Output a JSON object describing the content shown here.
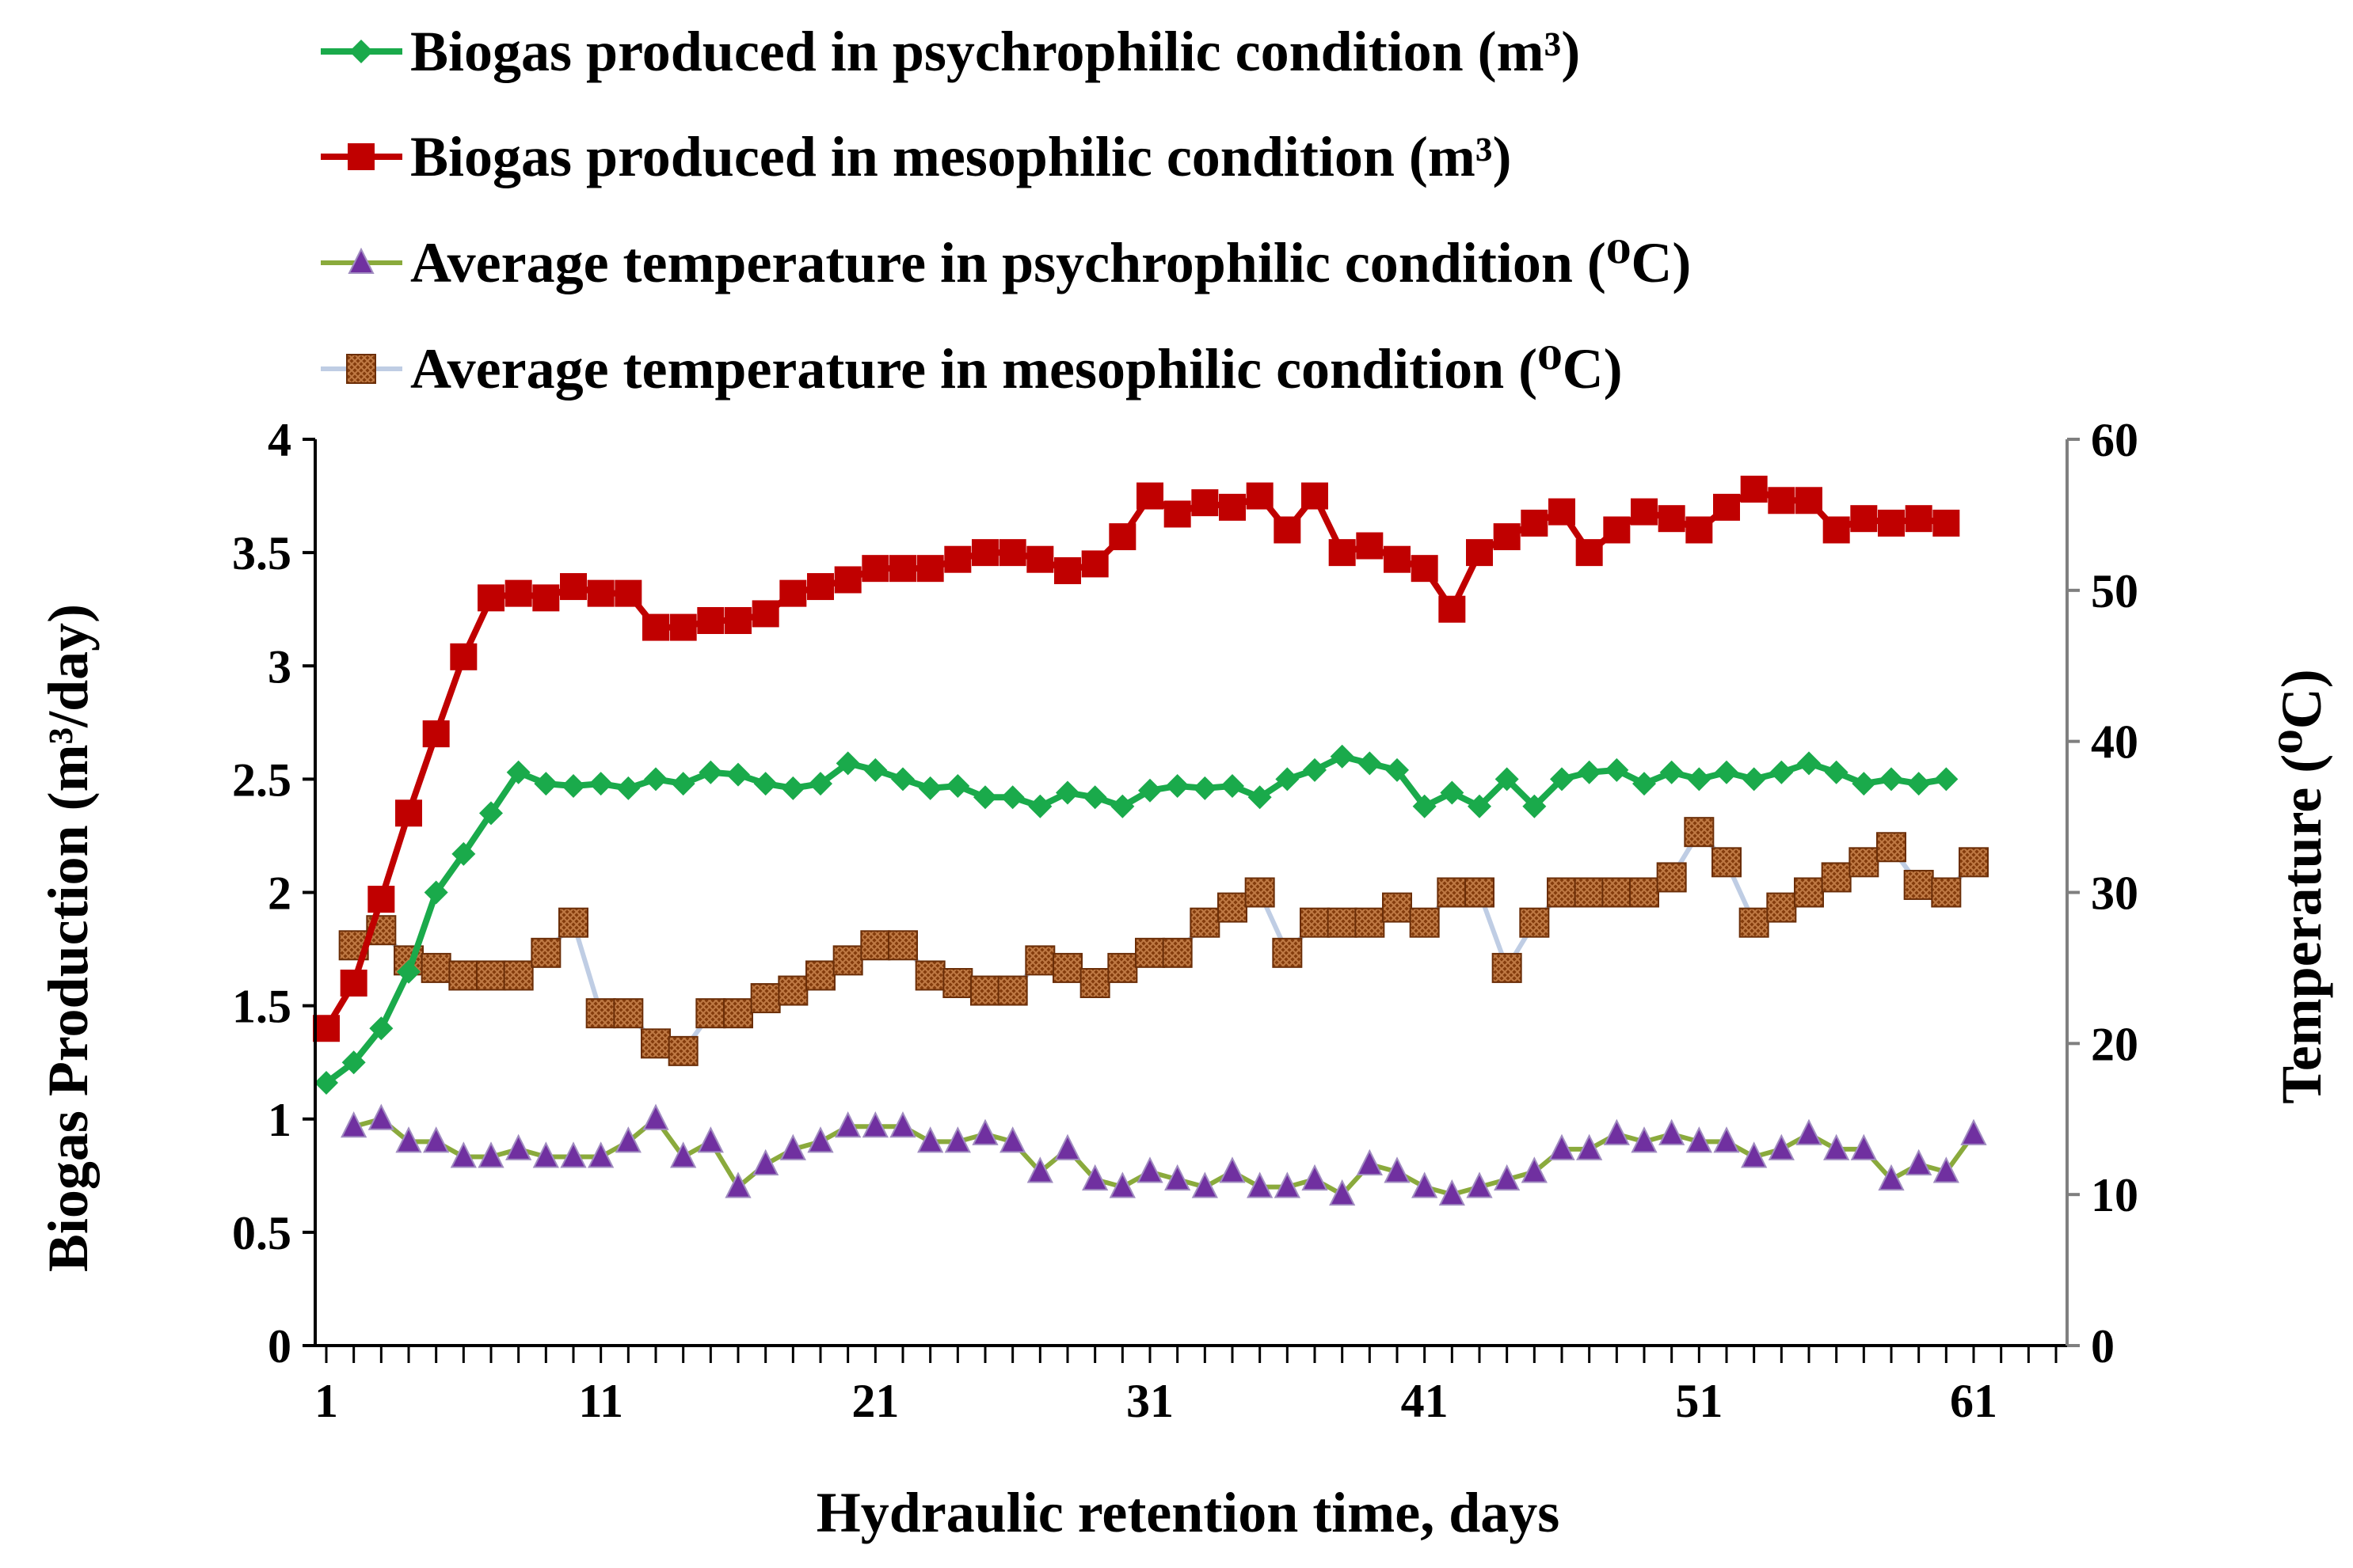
{
  "chart_data": {
    "type": "line",
    "xlabel": "Hydraulic retention time, days",
    "ylabel": "Biogas Production (m³/day)",
    "y2label": "Temperature (⁰C)",
    "xlim": [
      1,
      64
    ],
    "ylim": [
      0,
      4
    ],
    "y2lim": [
      0,
      60
    ],
    "x_ticks": [
      "1",
      "11",
      "21",
      "31",
      "41",
      "51",
      "61"
    ],
    "y_ticks": [
      "0",
      "0.5",
      "1",
      "1.5",
      "2",
      "2.5",
      "3",
      "3.5",
      "4"
    ],
    "y2_ticks": [
      "0",
      "10",
      "20",
      "30",
      "40",
      "50",
      "60"
    ],
    "legend_position": "top",
    "series": [
      {
        "name": "Biogas produced in psychrophilic condition (m³)",
        "axis": "left",
        "color": "#1aaa4b",
        "line_color": "#1aaa4b",
        "marker": "diamond",
        "x": [
          1,
          2,
          3,
          4,
          5,
          6,
          7,
          8,
          9,
          10,
          11,
          12,
          13,
          14,
          15,
          16,
          17,
          18,
          19,
          20,
          21,
          22,
          23,
          24,
          25,
          26,
          27,
          28,
          29,
          30,
          31,
          32,
          33,
          34,
          35,
          36,
          37,
          38,
          39,
          40,
          41,
          42,
          43,
          44,
          45,
          46,
          47,
          48,
          49,
          50,
          51,
          52,
          53,
          54,
          55,
          56,
          57,
          58,
          59,
          60
        ],
        "values": [
          1.16,
          1.25,
          1.4,
          1.65,
          2.0,
          2.17,
          2.35,
          2.53,
          2.48,
          2.47,
          2.48,
          2.46,
          2.5,
          2.48,
          2.53,
          2.52,
          2.48,
          2.46,
          2.48,
          2.57,
          2.54,
          2.5,
          2.46,
          2.47,
          2.42,
          2.42,
          2.38,
          2.44,
          2.42,
          2.38,
          2.45,
          2.47,
          2.46,
          2.47,
          2.42,
          2.5,
          2.54,
          2.6,
          2.57,
          2.54,
          2.38,
          2.44,
          2.38,
          2.5,
          2.38,
          2.5,
          2.53,
          2.54,
          2.48,
          2.53,
          2.5,
          2.53,
          2.5,
          2.53,
          2.57,
          2.53,
          2.48,
          2.5,
          2.48,
          2.5
        ]
      },
      {
        "name": "Biogas produced in mesophilic condition (m³)",
        "axis": "left",
        "color": "#c00000",
        "line_color": "#c00000",
        "marker": "square",
        "x": [
          1,
          2,
          3,
          4,
          5,
          6,
          7,
          8,
          9,
          10,
          11,
          12,
          13,
          14,
          15,
          16,
          17,
          18,
          19,
          20,
          21,
          22,
          23,
          24,
          25,
          26,
          27,
          28,
          29,
          30,
          31,
          32,
          33,
          34,
          35,
          36,
          37,
          38,
          39,
          40,
          41,
          42,
          43,
          44,
          45,
          46,
          47,
          48,
          49,
          50,
          51,
          52,
          53,
          54,
          55,
          56,
          57,
          58,
          59,
          60
        ],
        "values": [
          1.4,
          1.6,
          1.97,
          2.35,
          2.7,
          3.04,
          3.3,
          3.32,
          3.3,
          3.35,
          3.32,
          3.32,
          3.17,
          3.17,
          3.2,
          3.2,
          3.23,
          3.32,
          3.35,
          3.38,
          3.43,
          3.43,
          3.43,
          3.47,
          3.5,
          3.5,
          3.47,
          3.42,
          3.45,
          3.57,
          3.75,
          3.67,
          3.72,
          3.7,
          3.75,
          3.6,
          3.75,
          3.5,
          3.53,
          3.47,
          3.43,
          3.25,
          3.5,
          3.57,
          3.63,
          3.68,
          3.5,
          3.6,
          3.68,
          3.65,
          3.6,
          3.7,
          3.78,
          3.73,
          3.73,
          3.6,
          3.65,
          3.63,
          3.65,
          3.63
        ]
      },
      {
        "name": "Average temperature in psychrophilic condition (⁰C)",
        "axis": "right",
        "color": "#7030a0",
        "line_color": "#8aaa3c",
        "marker": "triangle",
        "x": [
          2,
          3,
          4,
          5,
          6,
          7,
          8,
          9,
          10,
          11,
          12,
          13,
          14,
          15,
          16,
          17,
          18,
          19,
          20,
          21,
          22,
          23,
          24,
          25,
          26,
          27,
          28,
          29,
          30,
          31,
          32,
          33,
          34,
          35,
          36,
          37,
          38,
          39,
          40,
          41,
          42,
          43,
          44,
          45,
          46,
          47,
          48,
          49,
          50,
          51,
          52,
          53,
          54,
          55,
          56,
          57,
          58,
          59,
          60,
          61
        ],
        "values": [
          14.5,
          15,
          13.5,
          13.5,
          12.5,
          12.5,
          13,
          12.5,
          12.5,
          12.5,
          13.5,
          15,
          12.5,
          13.5,
          10.5,
          12,
          13,
          13.5,
          14.5,
          14.5,
          14.5,
          13.5,
          13.5,
          14,
          13.5,
          11.5,
          13,
          11,
          10.5,
          11.5,
          11,
          10.5,
          11.5,
          10.5,
          10.5,
          11,
          10,
          12,
          11.5,
          10.5,
          10,
          10.5,
          11,
          11.5,
          13,
          13,
          14,
          13.5,
          14,
          13.5,
          13.5,
          12.5,
          13,
          14,
          13,
          13,
          11,
          12,
          11.5,
          14
        ]
      },
      {
        "name": "Average temperature in mesophilic condition  (⁰C)",
        "axis": "right",
        "color": "#843c0c",
        "line_color": "#bfcde4",
        "marker": "square-hatched",
        "x": [
          2,
          3,
          4,
          5,
          6,
          7,
          8,
          9,
          10,
          11,
          12,
          13,
          14,
          15,
          16,
          17,
          18,
          19,
          20,
          21,
          22,
          23,
          24,
          25,
          26,
          27,
          28,
          29,
          30,
          31,
          32,
          33,
          34,
          35,
          36,
          37,
          38,
          39,
          40,
          41,
          42,
          43,
          44,
          45,
          46,
          47,
          48,
          49,
          50,
          51,
          52,
          53,
          54,
          55,
          56,
          57,
          58,
          59,
          60,
          61
        ],
        "values": [
          26.5,
          27.5,
          25.5,
          25,
          24.5,
          24.5,
          24.5,
          26,
          28,
          22,
          22,
          20,
          19.5,
          22,
          22,
          23,
          23.5,
          24.5,
          25.5,
          26.5,
          26.5,
          24.5,
          24,
          23.5,
          23.5,
          25.5,
          25,
          24,
          25,
          26,
          26,
          28,
          29,
          30,
          26,
          28,
          28,
          28,
          29,
          28,
          30,
          30,
          25,
          28,
          30,
          30,
          30,
          30,
          31,
          34,
          32,
          28,
          29,
          30,
          31,
          32,
          33,
          30.5,
          30,
          32
        ]
      }
    ]
  }
}
